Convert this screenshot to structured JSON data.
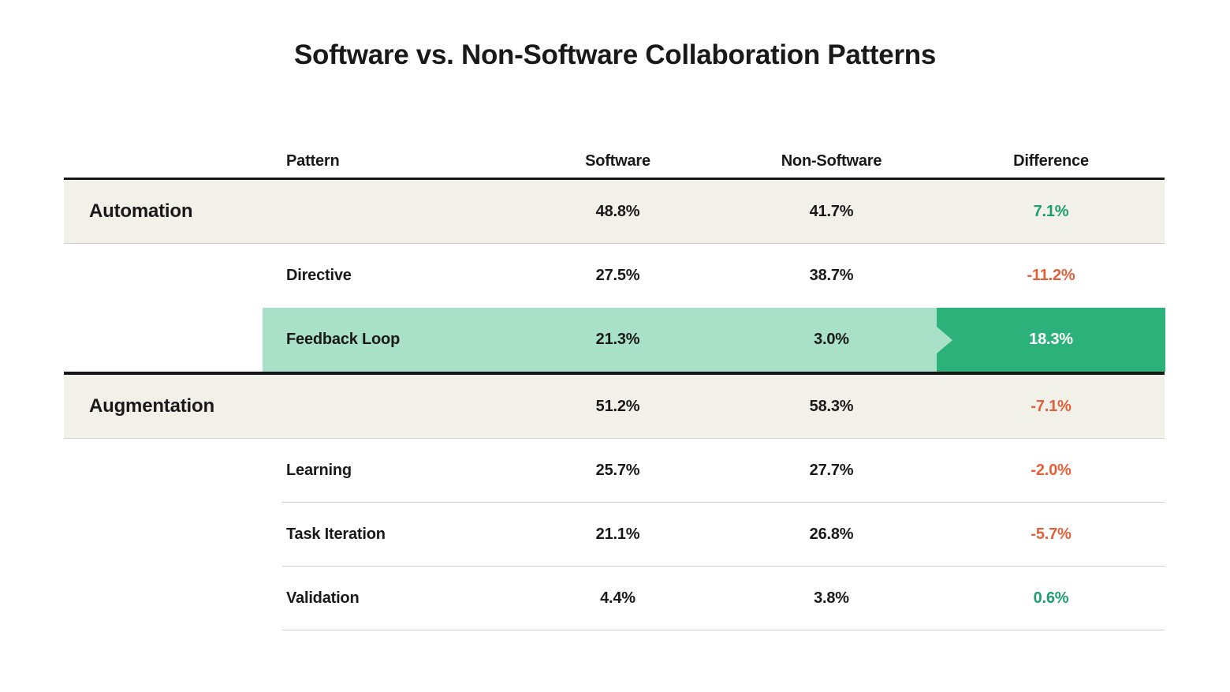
{
  "title": "Software vs. Non-Software Collaboration Patterns",
  "table": {
    "headers": {
      "pattern": "Pattern",
      "software": "Software",
      "non_software": "Non-Software",
      "difference": "Difference"
    },
    "rows": [
      {
        "category": "Automation",
        "pattern": "",
        "software": "48.8%",
        "non_software": "41.7%",
        "difference": "7.1%",
        "trend": "positive",
        "row_type": "category"
      },
      {
        "category": "",
        "pattern": "Directive",
        "software": "27.5%",
        "non_software": "38.7%",
        "difference": "-11.2%",
        "trend": "negative",
        "row_type": "sub"
      },
      {
        "category": "",
        "pattern": "Feedback Loop",
        "software": "21.3%",
        "non_software": "3.0%",
        "difference": "18.3%",
        "trend": "highlight",
        "row_type": "sub-highlighted"
      },
      {
        "category": "Augmentation",
        "pattern": "",
        "software": "51.2%",
        "non_software": "58.3%",
        "difference": "-7.1%",
        "trend": "negative",
        "row_type": "category"
      },
      {
        "category": "",
        "pattern": "Learning",
        "software": "25.7%",
        "non_software": "27.7%",
        "difference": "-2.0%",
        "trend": "negative",
        "row_type": "sub"
      },
      {
        "category": "",
        "pattern": "Task Iteration",
        "software": "21.1%",
        "non_software": "26.8%",
        "difference": "-5.7%",
        "trend": "negative",
        "row_type": "sub"
      },
      {
        "category": "",
        "pattern": "Validation",
        "software": "4.4%",
        "non_software": "3.8%",
        "difference": "0.6%",
        "trend": "positive",
        "row_type": "sub"
      }
    ]
  },
  "colors": {
    "page_bg": "#ffffff",
    "ink": "#191919",
    "category_row_bg": "#f2f1e9",
    "highlight_light_green": "#a8e1c8",
    "highlight_dark_green": "#2bb179",
    "positive_text": "#1e9e6c",
    "negative_text": "#e0613a",
    "thick_rule": "#161616",
    "thin_rule": "#cfcec8"
  },
  "chart_data": {
    "type": "table",
    "title": "Software vs. Non-Software Collaboration Patterns",
    "columns": [
      "Pattern",
      "Software",
      "Non-Software",
      "Difference"
    ],
    "rows": [
      [
        "Automation",
        48.8,
        41.7,
        7.1
      ],
      [
        "Directive",
        27.5,
        38.7,
        -11.2
      ],
      [
        "Feedback Loop",
        21.3,
        3.0,
        18.3
      ],
      [
        "Augmentation",
        51.2,
        58.3,
        -7.1
      ],
      [
        "Learning",
        25.7,
        27.7,
        -2.0
      ],
      [
        "Task Iteration",
        21.1,
        26.8,
        -5.7
      ],
      [
        "Validation",
        4.4,
        3.8,
        0.6
      ]
    ],
    "category_rows": [
      "Automation",
      "Augmentation"
    ],
    "highlighted_row": "Feedback Loop",
    "value_unit": "%",
    "difference_color_rule": "positive=green, negative=orange, highlighted=white-on-green"
  }
}
